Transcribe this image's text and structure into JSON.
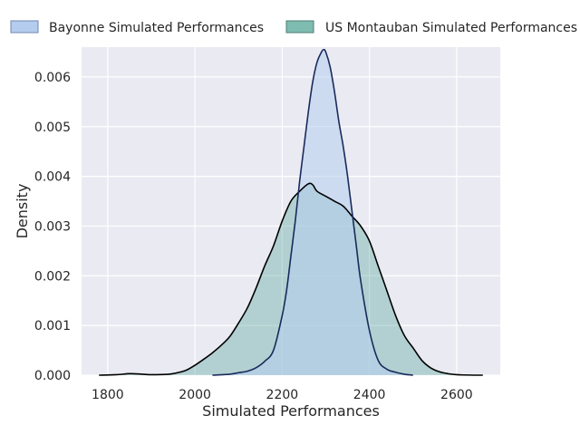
{
  "chart_data": {
    "type": "area",
    "title": "",
    "xlabel": "Simulated Performances",
    "ylabel": "Density",
    "xlim": [
      1740,
      2700
    ],
    "ylim": [
      0,
      0.0066
    ],
    "grid": true,
    "legend_position": "top",
    "xticks": [
      1800,
      2000,
      2200,
      2400,
      2600
    ],
    "xtick_labels": [
      "1800",
      "2000",
      "2200",
      "2400",
      "2600"
    ],
    "yticks": [
      0,
      0.001,
      0.002,
      0.003,
      0.004,
      0.005,
      0.006
    ],
    "ytick_labels": [
      "0.000",
      "0.001",
      "0.002",
      "0.003",
      "0.004",
      "0.005",
      "0.006"
    ],
    "series": [
      {
        "name": "Bayonne Simulated Performances",
        "fill": "#b4cdee",
        "fill_opacity": 0.55,
        "line": "#1a2a5c",
        "x": [
          2040,
          2080,
          2100,
          2120,
          2140,
          2160,
          2180,
          2200,
          2210,
          2220,
          2230,
          2240,
          2250,
          2260,
          2270,
          2280,
          2290,
          2295,
          2300,
          2310,
          2320,
          2330,
          2340,
          2350,
          2360,
          2370,
          2380,
          2400,
          2420,
          2440,
          2460,
          2480,
          2500
        ],
        "y": [
          0,
          2e-05,
          5e-05,
          8e-05,
          0.00015,
          0.00028,
          0.0005,
          0.0012,
          0.0017,
          0.0024,
          0.0031,
          0.0039,
          0.0046,
          0.0053,
          0.0059,
          0.0063,
          0.0065,
          0.00655,
          0.0065,
          0.0062,
          0.0057,
          0.0051,
          0.0046,
          0.004,
          0.0033,
          0.0026,
          0.0019,
          0.0009,
          0.0003,
          0.00012,
          6e-05,
          2e-05,
          0
        ]
      },
      {
        "name": "US Montauban Simulated Performances",
        "fill": "#5faa9f",
        "fill_opacity": 0.4,
        "line": "#000000",
        "x": [
          1780,
          1820,
          1850,
          1880,
          1900,
          1940,
          1960,
          1980,
          2000,
          2020,
          2040,
          2060,
          2080,
          2100,
          2120,
          2140,
          2160,
          2180,
          2200,
          2220,
          2240,
          2260,
          2270,
          2280,
          2300,
          2320,
          2340,
          2360,
          2380,
          2400,
          2420,
          2440,
          2460,
          2480,
          2500,
          2520,
          2540,
          2560,
          2580,
          2600,
          2640,
          2660
        ],
        "y": [
          0,
          1e-05,
          3e-05,
          2e-05,
          1e-05,
          2e-05,
          5e-05,
          0.0001,
          0.0002,
          0.00032,
          0.00045,
          0.0006,
          0.00078,
          0.00105,
          0.00135,
          0.00175,
          0.0022,
          0.0026,
          0.0031,
          0.0035,
          0.0037,
          0.00385,
          0.00383,
          0.0037,
          0.0036,
          0.0035,
          0.0034,
          0.0032,
          0.003,
          0.0027,
          0.0022,
          0.0017,
          0.0012,
          0.0008,
          0.00055,
          0.0003,
          0.00015,
          7e-05,
          3e-05,
          1e-05,
          0,
          0
        ]
      }
    ]
  }
}
